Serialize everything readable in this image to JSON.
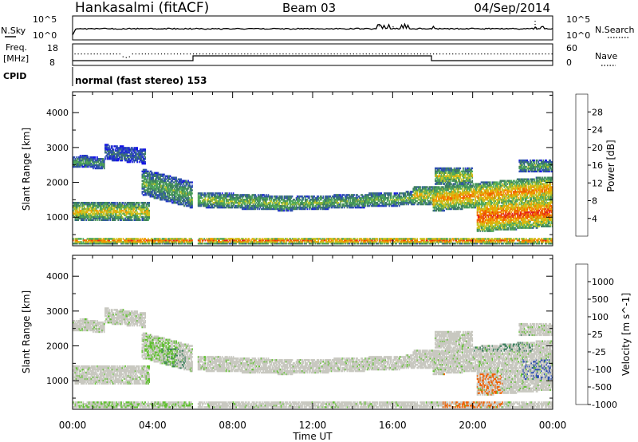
{
  "header": {
    "station": "Hankasalmi (fitACF)",
    "beam": "Beam 03",
    "date": "04/Sep/2014"
  },
  "strip_nsky": {
    "label": "N.Sky",
    "ticks": [
      "10^5",
      "10^0"
    ],
    "right_label": "N.Search"
  },
  "strip_freq": {
    "label_1": "Freq.",
    "label_2": "[MHz]",
    "left_ticks": [
      "18",
      "8"
    ],
    "right_ticks": [
      "60",
      "0"
    ],
    "right_label": "Nave"
  },
  "cpid": {
    "label": "CPID",
    "mode": "normal (fast stereo) 153"
  },
  "colors": {
    "power": [
      "#1414e6",
      "#2e4fb0",
      "#3f7f5f",
      "#4fa85a",
      "#c6c622",
      "#f0a000",
      "#f06000",
      "#e42020"
    ],
    "velocity": [
      "#e42020",
      "#f06000",
      "#f0a000",
      "#c8c8c0",
      "#c8c8c0",
      "#60c030",
      "#3f7f5f",
      "#2e4fb0"
    ]
  },
  "chart_data": [
    {
      "type": "heatmap",
      "xlabel": "",
      "ylabel": "Slant Range [km]",
      "x_range": [
        "00:00",
        "24:00"
      ],
      "ylim": [
        180,
        4600
      ],
      "y_ticks": [
        "1000",
        "2000",
        "3000",
        "4000"
      ],
      "colorbar": {
        "label": "Power [dB]",
        "ticks": [
          "4",
          "8",
          "12",
          "16",
          "20",
          "24",
          "28"
        ]
      }
    },
    {
      "type": "heatmap",
      "xlabel": "Time UT",
      "ylabel": "Slant Range [km]",
      "x_range": [
        "00:00",
        "24:00"
      ],
      "ylim": [
        180,
        4600
      ],
      "x_ticks": [
        "00:00",
        "04:00",
        "08:00",
        "12:00",
        "16:00",
        "20:00",
        "00:00"
      ],
      "y_ticks": [
        "1000",
        "2000",
        "3000",
        "4000"
      ],
      "colorbar": {
        "label": "Velocity [m s^-1]",
        "ticks": [
          "1000",
          "500",
          "100",
          "25",
          "-25",
          "-100",
          "-500",
          "-1000"
        ]
      }
    }
  ]
}
